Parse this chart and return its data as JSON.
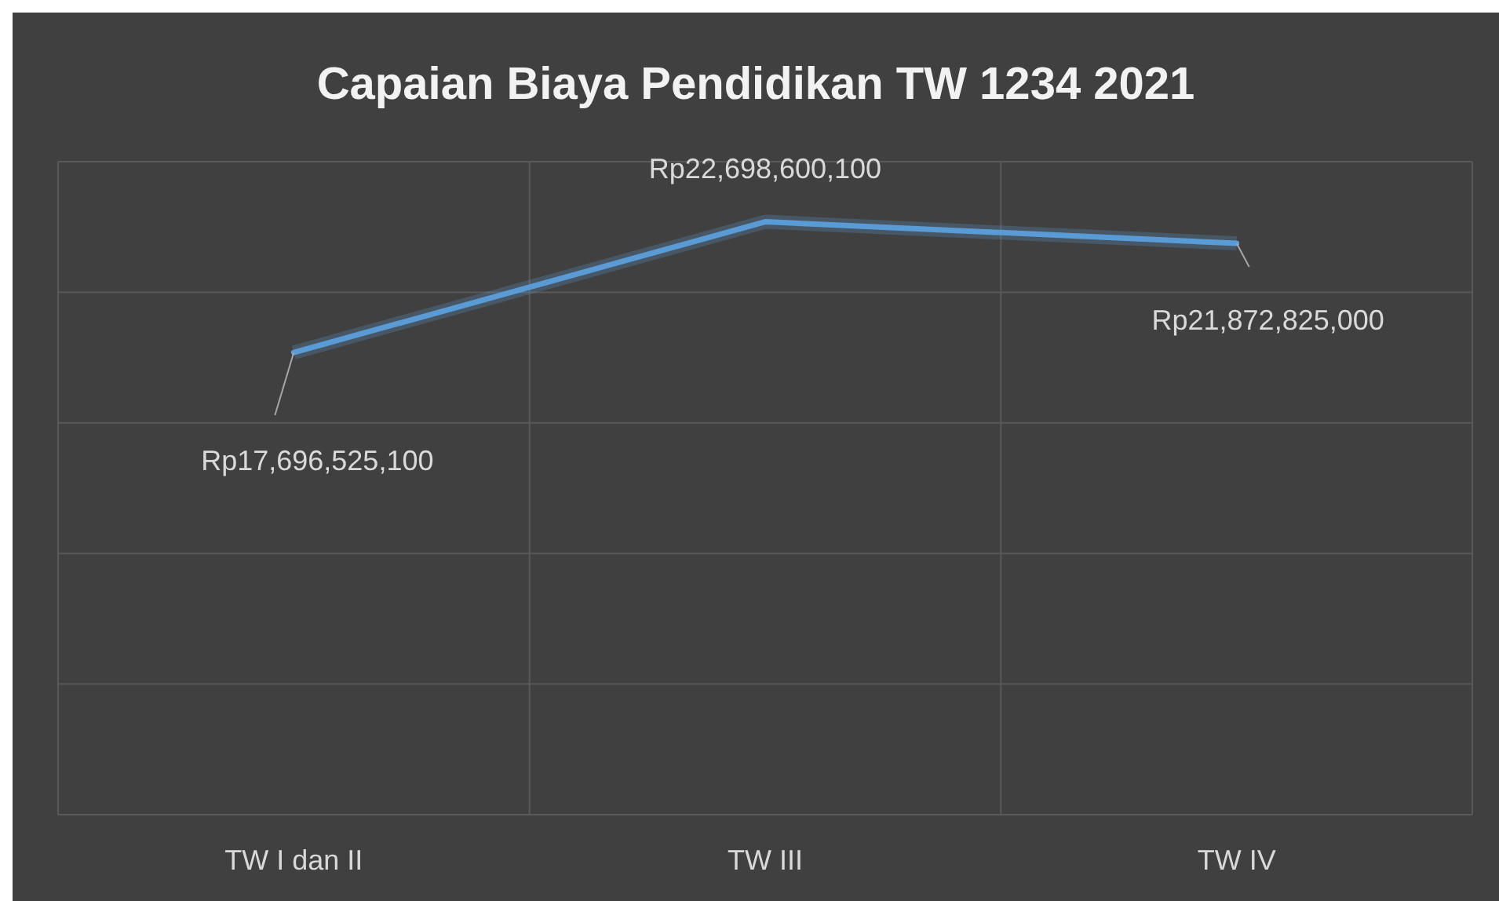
{
  "chart_data": {
    "type": "line",
    "title": "Capaian Biaya Pendidikan TW 1234 2021",
    "categories": [
      "TW I dan II",
      "TW III",
      "TW IV"
    ],
    "series": [
      {
        "color": "#5b9bd5",
        "values": [
          17696525100,
          22698600100,
          21872825000
        ],
        "value_labels": [
          "Rp17,696,525,100",
          "Rp22,698,600,100",
          "Rp21,872,825,000"
        ]
      }
    ],
    "ylim": [
      0,
      25000000000
    ],
    "yticks": [
      {
        "value": 0,
        "label": null
      },
      {
        "value": 5000000000,
        "label": null
      },
      {
        "value": 10000000000,
        "label": null
      },
      {
        "value": 15000000000,
        "label": null
      },
      {
        "value": 20000000000,
        "label": null
      },
      {
        "value": 25000000000,
        "label": null
      }
    ],
    "tick_labels": "x",
    "grid": true,
    "marker": "none",
    "line_style": "solid"
  }
}
